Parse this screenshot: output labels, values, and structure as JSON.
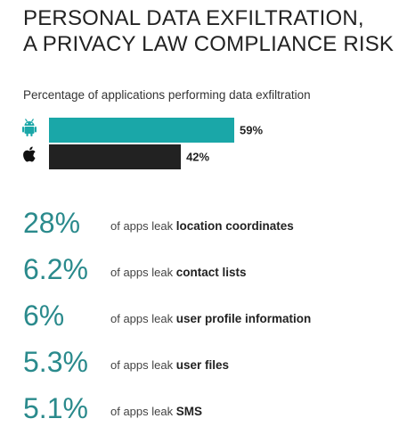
{
  "title": {
    "line1": "PERSONAL DATA EXFILTRATION,",
    "line2": "A PRIVACY LAW COMPLIANCE RISK"
  },
  "chart_data": {
    "type": "bar",
    "orientation": "horizontal",
    "title": "Percentage of applications performing data exfiltration",
    "categories": [
      "android-icon",
      "apple-icon"
    ],
    "values": [
      59,
      42
    ],
    "data_labels": [
      "59%",
      "42%"
    ],
    "colors": [
      "#1aa7a8",
      "#222222"
    ],
    "xlim": [
      0,
      59
    ]
  },
  "stats": [
    {
      "value": "28%",
      "prefix": "of apps leak",
      "item": "location coordinates"
    },
    {
      "value": "6.2%",
      "prefix": "of apps leak",
      "item": "contact lists"
    },
    {
      "value": "6%",
      "prefix": "of apps leak",
      "item": "user profile information"
    },
    {
      "value": "5.3%",
      "prefix": "of apps leak",
      "item": "user files"
    },
    {
      "value": "5.1%",
      "prefix": "of apps leak",
      "item": "SMS"
    }
  ],
  "colors": {
    "accent": "#2a8a8c",
    "android_bar": "#1aa7a8",
    "ios_bar": "#222222"
  }
}
